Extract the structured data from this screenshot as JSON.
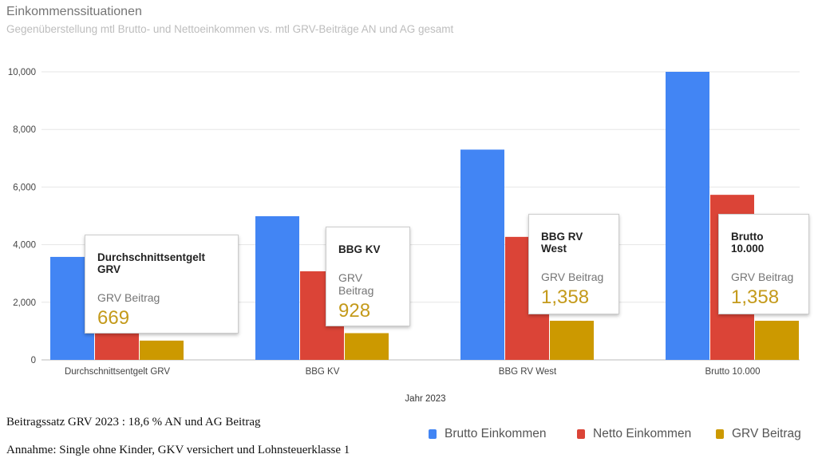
{
  "chart_data": {
    "type": "bar",
    "title": "Einkommenssituationen",
    "subtitle": "Gegenüberstellung mtl Brutto- und Nettoeinkommen vs. mtl GRV-Beiträge AN und AG gesamt",
    "xlabel": "Jahr 2023",
    "ylabel": "",
    "ylim": [
      0,
      10000
    ],
    "yticks": [
      "0",
      "2,000",
      "4,000",
      "6,000",
      "8,000",
      "10,000"
    ],
    "grid": true,
    "legend_position": "bottom-right",
    "categories": [
      "Durchschnittsentgelt GRV",
      "BBG KV",
      "BBG RV West",
      "Brutto 10.000"
    ],
    "series": [
      {
        "name": "Brutto Einkommen",
        "color": "#4285f4",
        "values": [
          3575,
          4988,
          7300,
          10000
        ]
      },
      {
        "name": "Netto Einkommen",
        "color": "#db4437",
        "values": [
          2400,
          3075,
          4270,
          5730
        ]
      },
      {
        "name": "GRV Beitrag",
        "color": "#cc9900",
        "values": [
          669,
          928,
          1358,
          1358
        ]
      }
    ],
    "tooltips": [
      {
        "category": "Durchschnittsentgelt GRV",
        "label": "GRV Beitrag",
        "value": "669"
      },
      {
        "category": "BBG KV",
        "label": "GRV Beitrag",
        "value": "928"
      },
      {
        "category": "BBG RV West",
        "label": "GRV Beitrag",
        "value": "1,358"
      },
      {
        "category": "Brutto 10.000",
        "label": "GRV Beitrag",
        "value": "1,358"
      }
    ]
  },
  "notes": [
    "Beitragssatz GRV 2023 : 18,6 % AN und AG Beitrag",
    "Annahme: Single ohne Kinder, GKV versichert und Lohnsteuerklasse 1"
  ]
}
